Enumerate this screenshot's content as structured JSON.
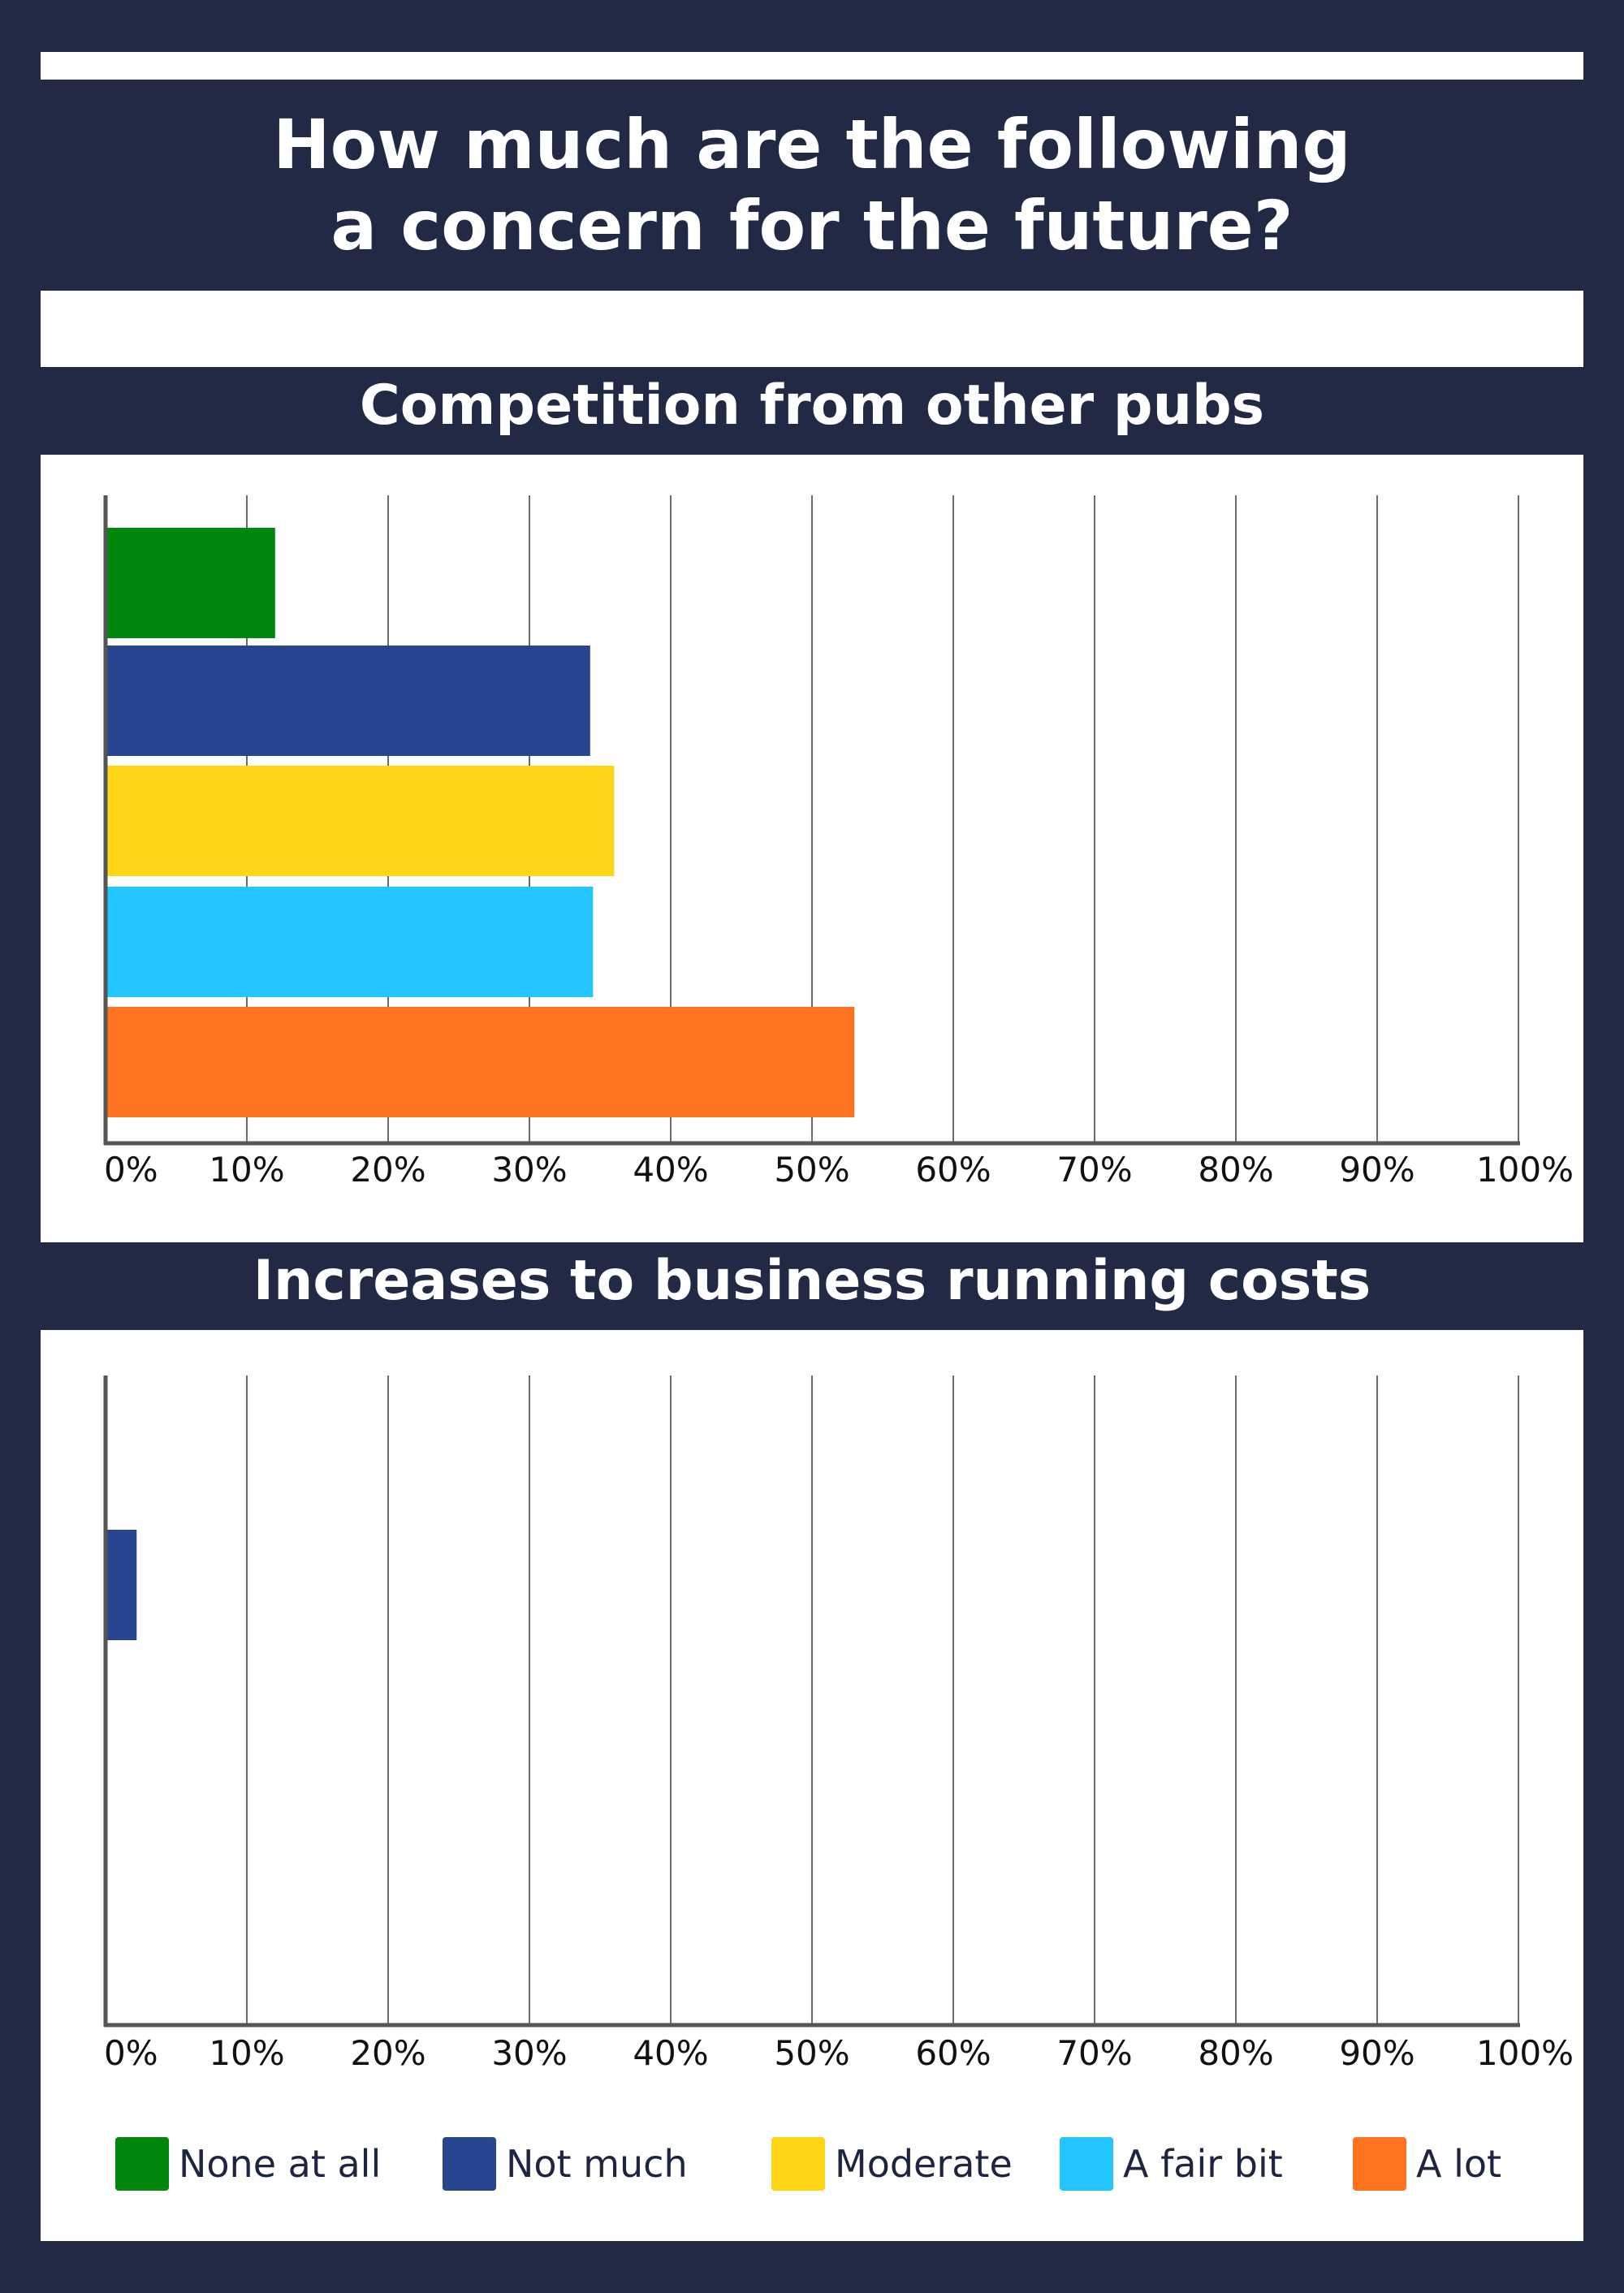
{
  "title": "How much are the following\na concern for the future?",
  "x_ticks": [
    "0%",
    "10%",
    "20%",
    "30%",
    "40%",
    "50%",
    "60%",
    "70%",
    "80%",
    "90%",
    "100%"
  ],
  "chart_data": [
    {
      "type": "bar",
      "orientation": "horizontal",
      "title": "Competition from other pubs",
      "categories": [
        "None at all",
        "Not much",
        "Moderate",
        "A fair bit",
        "A lot"
      ],
      "values": [
        12,
        34.3,
        36,
        34.5,
        53
      ],
      "xlim": [
        0,
        100
      ],
      "grid": true
    },
    {
      "type": "bar",
      "orientation": "horizontal",
      "title": "Increases to business running costs",
      "categories": [
        "None at all",
        "Not much",
        "Moderate",
        "A fair bit",
        "A lot"
      ],
      "values": [
        0,
        2.2,
        0,
        0,
        0
      ],
      "xlim": [
        0,
        100
      ],
      "grid": true
    }
  ],
  "legend": [
    {
      "label": "None at all",
      "color": "#02870e"
    },
    {
      "label": "Not much",
      "color": "#284590"
    },
    {
      "label": "Moderate",
      "color": "#ffd617"
    },
    {
      "label": "A fair bit",
      "color": "#22c5ff"
    },
    {
      "label": "A lot",
      "color": "#ff721f"
    }
  ]
}
